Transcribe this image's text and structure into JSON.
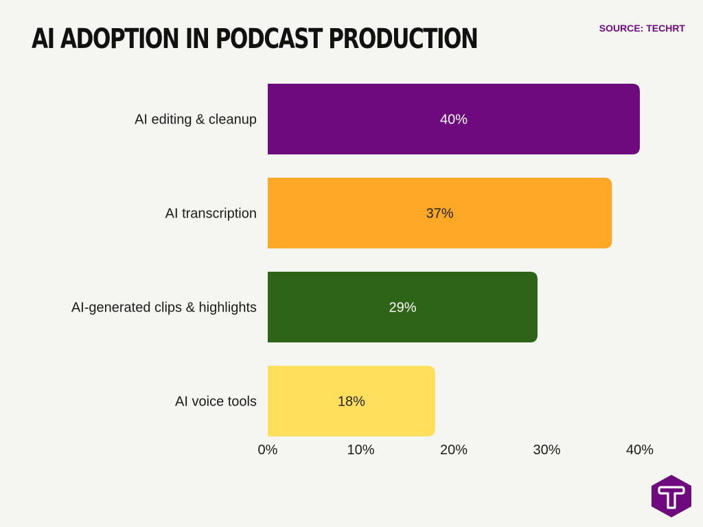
{
  "header": {
    "title": "AI ADOPTION IN PODCAST PRODUCTION",
    "source": "SOURCE: TECHRT"
  },
  "chart_data": {
    "type": "bar",
    "orientation": "horizontal",
    "categories": [
      "AI editing & cleanup",
      "AI transcription",
      "AI-generated clips & highlights",
      "AI voice tools"
    ],
    "values": [
      40,
      37,
      29,
      18
    ],
    "value_labels": [
      "40%",
      "37%",
      "29%",
      "18%"
    ],
    "colors": [
      "#6e0a7d",
      "#ffa726",
      "#2e6418",
      "#ffdf5c"
    ],
    "label_colors": [
      "#ffffff",
      "#222222",
      "#ffffff",
      "#222222"
    ],
    "xlim": [
      0,
      40
    ],
    "x_ticks": [
      0,
      10,
      20,
      30,
      40
    ],
    "x_tick_labels": [
      "0%",
      "10%",
      "20%",
      "30%",
      "40%"
    ],
    "grid": false,
    "legend": "none"
  },
  "brand": {
    "logo_icon": "techrt-logo-icon",
    "logo_color": "#6e0a7d"
  }
}
